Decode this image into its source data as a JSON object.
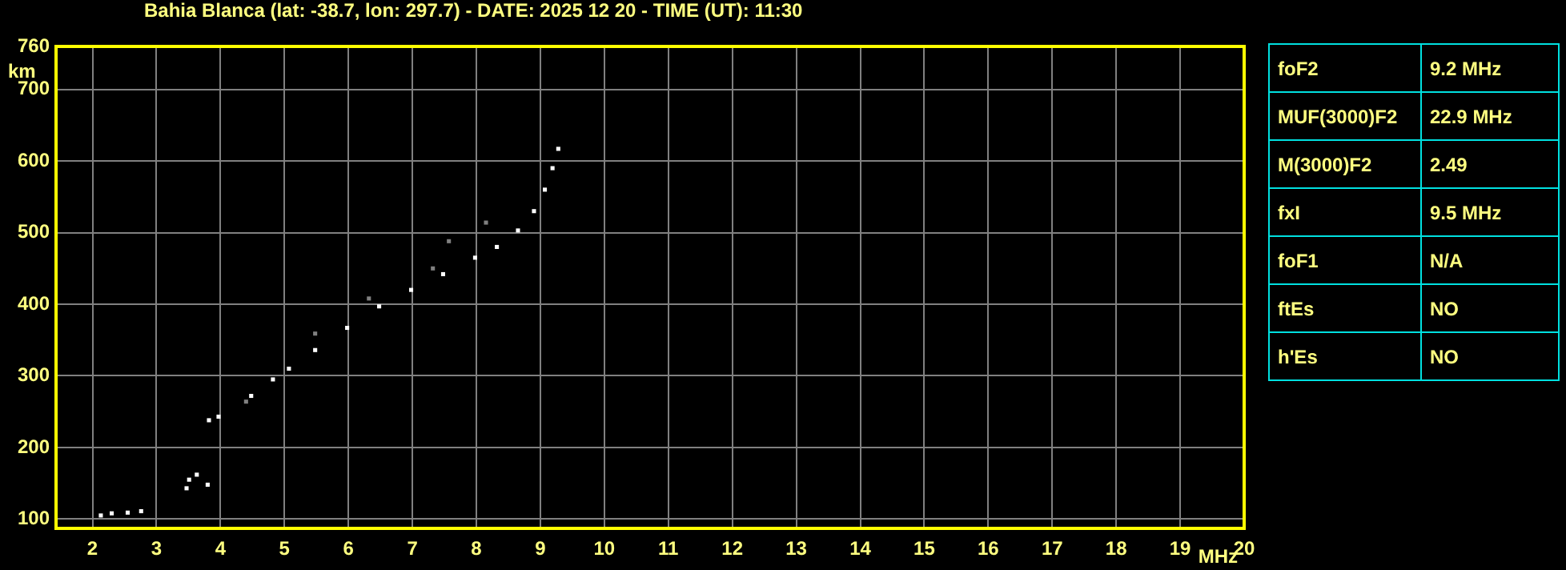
{
  "chart_data": [
    {
      "type": "scatter",
      "title": "Bahia Blanca (lat: -38.7, lon: 297.7) - DATE: 2025 12 20 - TIME (UT): 11:30",
      "xlabel": "MHz",
      "ylabel": "km",
      "xlim": [
        1.43,
        20
      ],
      "xticks": [
        2,
        3,
        4,
        5,
        6,
        7,
        8,
        9,
        10,
        11,
        12,
        13,
        14,
        15,
        16,
        17,
        18,
        19,
        20
      ],
      "ylim": [
        87,
        760
      ],
      "yticks": [
        100,
        200,
        300,
        400,
        500,
        600,
        700,
        760
      ],
      "grid": true,
      "legend": false,
      "marker": "square",
      "series": [
        {
          "color": "#ffffff",
          "x": [
            2.13,
            2.3,
            2.55,
            2.76,
            3.47,
            3.51,
            3.63,
            3.8,
            3.82,
            3.97,
            4.48,
            4.82,
            5.07,
            5.48,
            5.98,
            6.48,
            6.98,
            7.48,
            7.98,
            8.32,
            8.65,
            8.9,
            9.07,
            9.19,
            9.28
          ],
          "values": [
            105,
            108,
            109,
            111,
            143,
            155,
            162,
            148,
            238,
            243,
            272,
            295,
            310,
            336,
            367,
            397,
            420,
            442,
            465,
            480,
            503,
            530,
            560,
            590,
            617
          ]
        },
        {
          "color": "#808080",
          "x": [
            4.4,
            5.48,
            6.32,
            7.32,
            7.57,
            8.15
          ],
          "values": [
            264,
            359,
            408,
            450,
            488,
            514
          ]
        }
      ]
    },
    {
      "type": "other",
      "annotations": [
        "foF2",
        "9.2 MHz",
        "MUF(3000)F2",
        "22.9 MHz",
        "M(3000)F2",
        "2.49",
        "fxI",
        "9.5 MHz",
        "foF1",
        "N/A",
        "ftEs",
        "NO",
        "h'Es",
        "NO"
      ]
    }
  ]
}
